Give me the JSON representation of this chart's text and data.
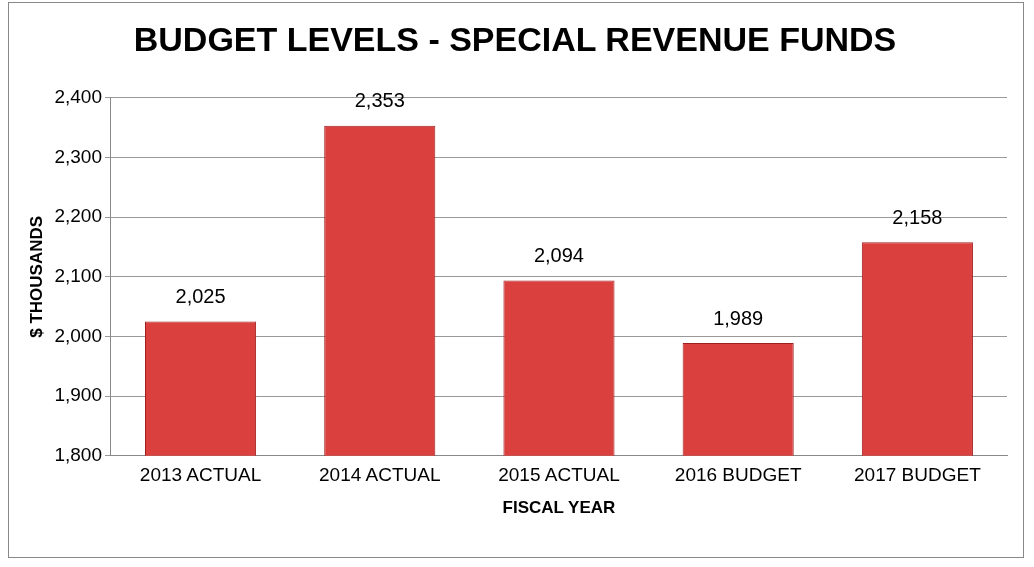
{
  "chart_data": {
    "type": "bar",
    "title": "BUDGET LEVELS - SPECIAL REVENUE FUNDS",
    "xlabel": "FISCAL YEAR",
    "ylabel": "$ THOUSANDS",
    "categories": [
      "2013 ACTUAL",
      "2014 ACTUAL",
      "2015 ACTUAL",
      "2016 BUDGET",
      "2017 BUDGET"
    ],
    "values": [
      2025,
      2353,
      2094,
      1989,
      2158
    ],
    "value_labels": [
      "2,025",
      "2,353",
      "2,094",
      "1,989",
      "2,158"
    ],
    "color": "#d9403e",
    "ylim": [
      1800,
      2400
    ],
    "yticks": [
      {
        "value": 1800,
        "label": "1,800"
      },
      {
        "value": 1900,
        "label": "1,900"
      },
      {
        "value": 2000,
        "label": "2,000"
      },
      {
        "value": 2100,
        "label": "2,100"
      },
      {
        "value": 2200,
        "label": "2,200"
      },
      {
        "value": 2300,
        "label": "2,300"
      },
      {
        "value": 2400,
        "label": "2,400"
      }
    ],
    "grid": "y"
  }
}
